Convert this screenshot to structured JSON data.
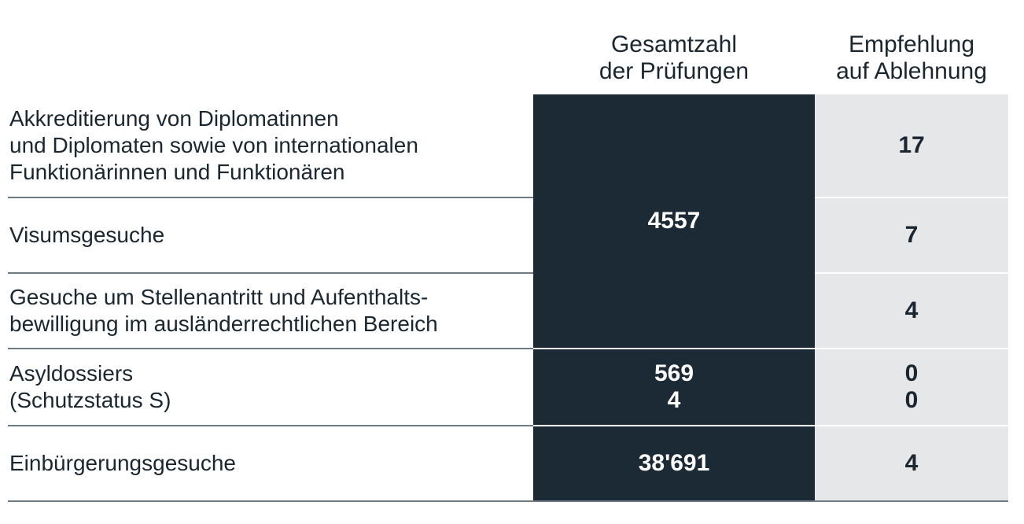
{
  "header": {
    "total_line1": "Gesamtzahl",
    "total_line2": "der Prüfungen",
    "reject_line1": "Empfehlung",
    "reject_line2": "auf Ablehnung"
  },
  "rows": [
    {
      "label_lines": [
        "Akkreditierung von Diplomatinnen",
        "und Diplomaten sowie von internationalen",
        "Funktionärinnen und Funktionären"
      ],
      "reject": "17"
    },
    {
      "label_lines": [
        "Visumsgesuche"
      ],
      "reject": "7"
    },
    {
      "label_lines": [
        "Gesuche um Stellenantritt und Aufenthalts-",
        "bewilligung im ausländerrechtlichen Bereich"
      ],
      "reject": "4"
    },
    {
      "label_lines": [
        "Asyldossiers",
        "(Schutzstatus S)"
      ],
      "total_lines": [
        "569",
        "4"
      ],
      "reject_lines": [
        "0",
        "0"
      ]
    },
    {
      "label_lines": [
        "Einbürgerungsgesuche"
      ],
      "total": "38'691",
      "reject": "4"
    }
  ],
  "merged_total": "4557"
}
